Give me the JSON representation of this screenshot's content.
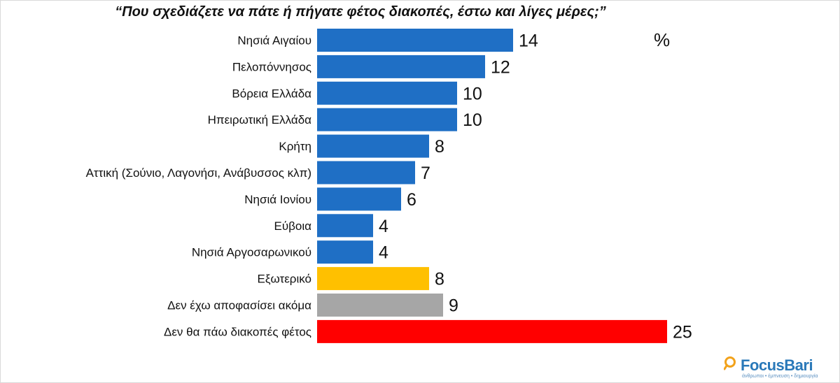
{
  "title": "“Που σχεδιάζετε να πάτε ή πήγατε φέτος διακοπές, έστω και λίγες μέρες;”",
  "unit": "%",
  "logo": {
    "name": "FocusBari",
    "tagline": "άνθρωποι • έμπνευση • δημιουργία"
  },
  "colors": {
    "blue": "#1f6fc5",
    "yellow": "#ffc000",
    "gray": "#a6a6a6",
    "red": "#ff0000"
  },
  "chart_data": {
    "type": "bar",
    "orientation": "horizontal",
    "title": "“Που σχεδιάζετε να πάτε ή πήγατε φέτος διακοπές, έστω και λίγες μέρες;”",
    "unit": "%",
    "grid": false,
    "categories": [
      "Νησιά Αιγαίου",
      "Πελοπόννησος",
      "Βόρεια Ελλάδα",
      "Ηπειρωτική Ελλάδα",
      "Κρήτη",
      "Αττική (Σούνιο, Λαγονήσι, Ανάβυσσος κλπ)",
      "Νησιά Ιονίου",
      "Εύβοια",
      "Νησιά Αργοσαρωνικού",
      "Εξωτερικό",
      "Δεν έχω αποφασίσει ακόμα",
      "Δεν θα πάω διακοπές φέτος"
    ],
    "values": [
      14,
      12,
      10,
      10,
      8,
      7,
      6,
      4,
      4,
      8,
      9,
      25
    ],
    "bar_colors": [
      "#1f6fc5",
      "#1f6fc5",
      "#1f6fc5",
      "#1f6fc5",
      "#1f6fc5",
      "#1f6fc5",
      "#1f6fc5",
      "#1f6fc5",
      "#1f6fc5",
      "#ffc000",
      "#a6a6a6",
      "#ff0000"
    ],
    "xlim": [
      0,
      25
    ]
  }
}
